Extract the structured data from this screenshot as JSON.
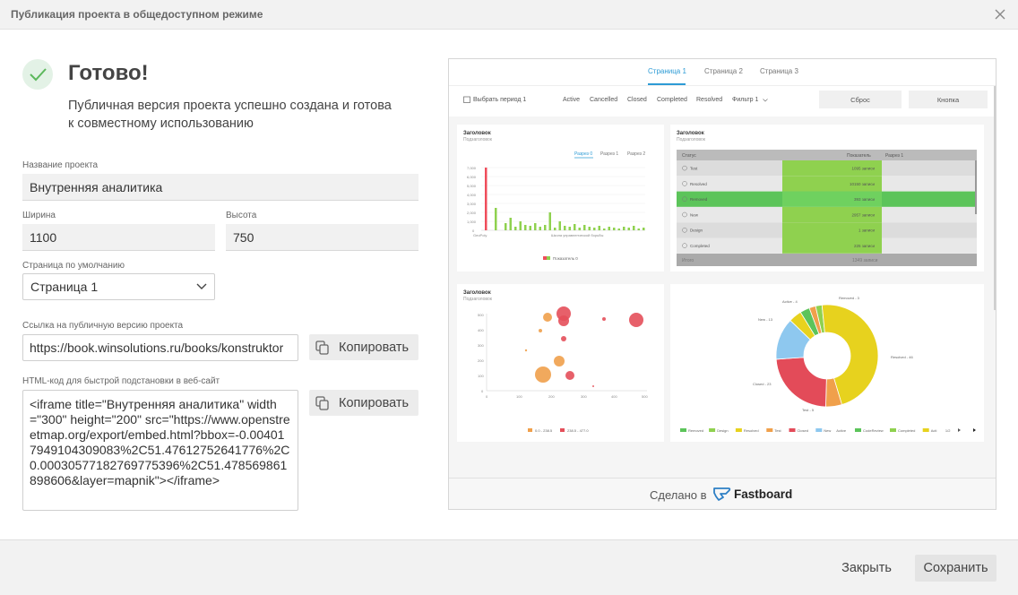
{
  "header": {
    "title": "Публикация проекта в общедоступном режиме"
  },
  "success": {
    "title": "Готово!",
    "message": "Публичная версия проекта успешно создана и готова к совместному использованию"
  },
  "form": {
    "name_label": "Название проекта",
    "name_value": "Внутренняя аналитика",
    "width_label": "Ширина",
    "width_value": "1100",
    "height_label": "Высота",
    "height_value": "750",
    "page_label": "Страница по умолчанию",
    "page_value": "Страница 1",
    "link_label": "Ссылка на публичную версию проекта",
    "link_value": "https://book.winsolutions.ru/books/konstruktor",
    "html_label": "HTML-код для быстрой подстановки в веб-сайт",
    "html_value": "<iframe title=\"Внутренняя аналитика\" width=\"300\" height=\"200\" src=\"https://www.openstreetmap.org/export/embed.html?bbox=-0.004017949104309083%2C51.47612752641776%2C0.00030577182769775396%2C51.478569861898606&layer=mapnik\"></iframe>",
    "copy_label": "Копировать"
  },
  "preview": {
    "tabs": [
      "Страница 1",
      "Страница 2",
      "Страница 3"
    ],
    "period": "Выбрать период 1",
    "filters": [
      "Active",
      "Cancelled",
      "Closed",
      "Completed",
      "Resolved"
    ],
    "filter_dd": "Фильтр 1",
    "reset": "Сброс",
    "button": "Кнопка",
    "card_title": "Заголовок",
    "card_sub": "Подзаголовок",
    "bar_tabs": [
      "Разрез 0",
      "Разрез 1",
      "Разрез 2"
    ],
    "bar_y": [
      "7,000",
      "6,000",
      "5,000",
      "4,000",
      "3,000",
      "2,000",
      "1,000",
      "0"
    ],
    "bar_x": [
      "GeoPoly",
      "Школа управленческой борьбы"
    ],
    "bar_legend": "Показатель 0",
    "table_head": [
      "Статус",
      "Показатель",
      "Разрез 1"
    ],
    "table_rows": [
      {
        "status": "Test",
        "value": "1095 записи"
      },
      {
        "status": "Resolved",
        "value": "10150 записи"
      },
      {
        "status": "Removed",
        "value": "393 записи"
      },
      {
        "status": "New",
        "value": "2957 записи"
      },
      {
        "status": "Design",
        "value": "1 записи"
      },
      {
        "status": "Completed",
        "value": "225 записи"
      }
    ],
    "table_total": "Итого",
    "table_total_val": "1349 записи",
    "bubble_y": [
      "500",
      "400",
      "300",
      "200",
      "100",
      "0"
    ],
    "bubble_x": [
      "0",
      "100",
      "200",
      "300",
      "400",
      "500"
    ],
    "bubble_legend": [
      "0.0 - 238.5",
      "238.5 - 477.0"
    ],
    "donut_labels": [
      "Removed - 3",
      "Active - 4",
      "New - 13",
      "Resolved - 46",
      "Closed - 23",
      "Test - 5"
    ],
    "donut_legend": [
      "Removed",
      "Design",
      "Resolved",
      "Test",
      "Closed",
      "New",
      "Active",
      "CodeReview",
      "Completed",
      "Acti",
      "1/2"
    ],
    "made_with": "Сделано в",
    "brand": "Fastboard"
  },
  "footer": {
    "close": "Закрыть",
    "save": "Сохранить"
  },
  "colors": {
    "accent_green": "#5cb85c",
    "bar_green": "#8fd14f",
    "bar_red": "#ef4d5b",
    "bubble_orange": "#f0a04b",
    "bubble_red": "#e44f5a",
    "donut_yellow": "#e7d21e",
    "donut_red": "#e34b59",
    "donut_blue": "#8ec8ef",
    "donut_orange": "#f0a04b",
    "donut_green": "#5cc45a"
  }
}
